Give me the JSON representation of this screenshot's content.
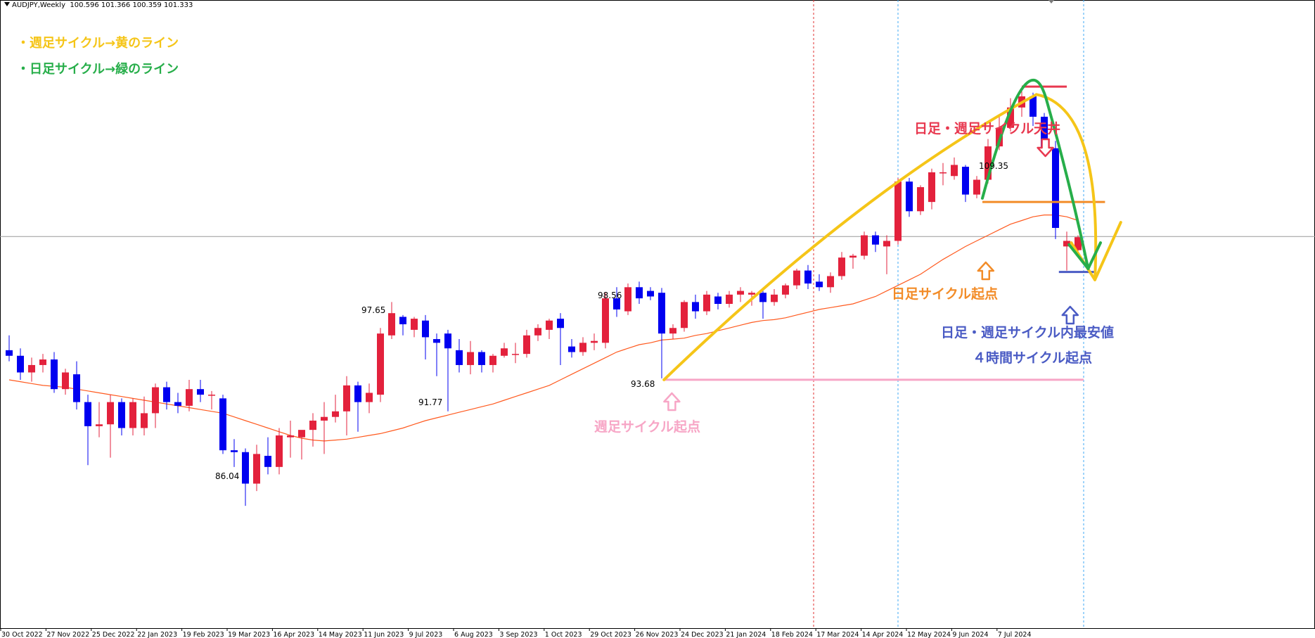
{
  "header": {
    "symbol": "AUDJPY,Weekly",
    "ohlc": "100.596 101.366 100.359 101.333"
  },
  "legend": [
    {
      "text": "・週足サイクル→黄のライン",
      "color": "#f5c518"
    },
    {
      "text": "・日足サイクル→緑のライン",
      "color": "#27ae4a"
    }
  ],
  "annotations": {
    "top": {
      "text": "日足・週足サイクル天井",
      "color": "#e8384f"
    },
    "daily_start": {
      "text": "日足サイクル起点",
      "color": "#f28c28"
    },
    "lowest": {
      "text": "日足・週足サイクル内最安値",
      "color": "#4a5bc4"
    },
    "h4_start": {
      "text": "４時間サイクル起点",
      "color": "#4a5bc4"
    },
    "weekly_start": {
      "text": "週足サイクル起点",
      "color": "#f7a6c6"
    }
  },
  "price_labels": [
    "86.04",
    "97.65",
    "91.77",
    "98.56",
    "93.68",
    "109.35"
  ],
  "colors": {
    "bull": "#e3213c",
    "bear": "#0000f0",
    "ma": "#ff5a1f",
    "yellow": "#f5c518",
    "green": "#27ae4a",
    "orange": "#f28c28",
    "pink": "#f7a6c6",
    "blue": "#4a5bc4",
    "red": "#e8384f"
  },
  "chart_data": {
    "type": "candlestick",
    "symbol": "AUDJPY",
    "timeframe": "Weekly",
    "ylim": [
      80.2,
      114.1
    ],
    "x_ticks": [
      "30 Oct 2022",
      "27 Nov 2022",
      "25 Dec 2022",
      "22 Jan 2023",
      "19 Feb 2023",
      "19 Mar 2023",
      "16 Apr 2023",
      "14 May 2023",
      "11 Jun 2023",
      "9 Jul 2023",
      "6 Aug 2023",
      "3 Sep 2023",
      "1 Oct 2023",
      "29 Oct 2023",
      "26 Nov 2023",
      "24 Dec 2023",
      "21 Jan 2024",
      "18 Feb 2024",
      "17 Mar 2024",
      "14 Apr 2024",
      "12 May 2024",
      "9 Jun 2024",
      "7 Jul 2024"
    ],
    "candles": [
      {
        "o": 95.2,
        "h": 96.0,
        "l": 94.6,
        "c": 94.9
      },
      {
        "o": 94.9,
        "h": 95.3,
        "l": 93.6,
        "c": 94.0
      },
      {
        "o": 94.0,
        "h": 94.8,
        "l": 93.5,
        "c": 94.4
      },
      {
        "o": 94.4,
        "h": 95.0,
        "l": 94.0,
        "c": 94.7
      },
      {
        "o": 94.7,
        "h": 95.1,
        "l": 92.9,
        "c": 93.1
      },
      {
        "o": 93.1,
        "h": 94.2,
        "l": 92.8,
        "c": 94.0
      },
      {
        "o": 93.9,
        "h": 94.6,
        "l": 92.0,
        "c": 92.4
      },
      {
        "o": 92.4,
        "h": 92.8,
        "l": 89.0,
        "c": 91.1
      },
      {
        "o": 91.1,
        "h": 92.4,
        "l": 90.5,
        "c": 91.2
      },
      {
        "o": 91.2,
        "h": 92.8,
        "l": 89.4,
        "c": 92.4
      },
      {
        "o": 92.4,
        "h": 92.6,
        "l": 90.6,
        "c": 91.0
      },
      {
        "o": 91.0,
        "h": 92.6,
        "l": 90.6,
        "c": 92.4
      },
      {
        "o": 91.0,
        "h": 92.7,
        "l": 90.6,
        "c": 91.8
      },
      {
        "o": 91.8,
        "h": 93.4,
        "l": 91.0,
        "c": 93.2
      },
      {
        "o": 93.2,
        "h": 93.5,
        "l": 92.0,
        "c": 92.4
      },
      {
        "o": 92.4,
        "h": 92.9,
        "l": 91.8,
        "c": 92.2
      },
      {
        "o": 92.2,
        "h": 93.6,
        "l": 91.9,
        "c": 93.1
      },
      {
        "o": 93.1,
        "h": 93.6,
        "l": 92.4,
        "c": 92.8
      },
      {
        "o": 92.8,
        "h": 93.0,
        "l": 92.0,
        "c": 92.8
      },
      {
        "o": 92.6,
        "h": 92.8,
        "l": 89.6,
        "c": 89.8
      },
      {
        "o": 89.8,
        "h": 90.4,
        "l": 88.9,
        "c": 89.7
      },
      {
        "o": 89.7,
        "h": 89.9,
        "l": 86.8,
        "c": 88.0
      },
      {
        "o": 88.0,
        "h": 90.1,
        "l": 87.6,
        "c": 89.6
      },
      {
        "o": 89.5,
        "h": 90.5,
        "l": 88.5,
        "c": 88.9
      },
      {
        "o": 88.9,
        "h": 91.0,
        "l": 88.5,
        "c": 90.6
      },
      {
        "o": 90.5,
        "h": 91.4,
        "l": 89.4,
        "c": 90.6
      },
      {
        "o": 90.5,
        "h": 90.8,
        "l": 89.3,
        "c": 90.9
      },
      {
        "o": 90.9,
        "h": 91.8,
        "l": 90.0,
        "c": 91.4
      },
      {
        "o": 91.4,
        "h": 92.4,
        "l": 89.6,
        "c": 91.6
      },
      {
        "o": 91.6,
        "h": 92.8,
        "l": 91.3,
        "c": 91.9
      },
      {
        "o": 91.9,
        "h": 93.8,
        "l": 90.6,
        "c": 93.3
      },
      {
        "o": 93.3,
        "h": 93.5,
        "l": 90.8,
        "c": 92.4
      },
      {
        "o": 92.4,
        "h": 93.4,
        "l": 91.8,
        "c": 92.9
      },
      {
        "o": 92.8,
        "h": 96.4,
        "l": 92.4,
        "c": 96.1
      },
      {
        "o": 96.0,
        "h": 97.8,
        "l": 95.8,
        "c": 97.2
      },
      {
        "o": 97.0,
        "h": 97.1,
        "l": 96.0,
        "c": 96.6
      },
      {
        "o": 96.3,
        "h": 97.0,
        "l": 95.9,
        "c": 96.9
      },
      {
        "o": 96.8,
        "h": 97.1,
        "l": 94.7,
        "c": 95.9
      },
      {
        "o": 95.8,
        "h": 96.1,
        "l": 93.8,
        "c": 95.6
      },
      {
        "o": 96.1,
        "h": 96.3,
        "l": 91.9,
        "c": 95.3
      },
      {
        "o": 95.2,
        "h": 95.8,
        "l": 94.0,
        "c": 94.4
      },
      {
        "o": 94.4,
        "h": 95.7,
        "l": 93.9,
        "c": 95.1
      },
      {
        "o": 95.1,
        "h": 95.2,
        "l": 94.0,
        "c": 94.4
      },
      {
        "o": 94.4,
        "h": 95.0,
        "l": 94.0,
        "c": 94.9
      },
      {
        "o": 94.9,
        "h": 95.6,
        "l": 94.8,
        "c": 95.3
      },
      {
        "o": 95.0,
        "h": 95.6,
        "l": 94.5,
        "c": 95.0
      },
      {
        "o": 95.0,
        "h": 96.3,
        "l": 94.8,
        "c": 96.0
      },
      {
        "o": 96.0,
        "h": 96.6,
        "l": 95.7,
        "c": 96.4
      },
      {
        "o": 96.3,
        "h": 96.9,
        "l": 95.8,
        "c": 96.8
      },
      {
        "o": 96.9,
        "h": 97.2,
        "l": 94.4,
        "c": 96.4
      },
      {
        "o": 95.4,
        "h": 95.8,
        "l": 94.8,
        "c": 95.1
      },
      {
        "o": 95.1,
        "h": 95.9,
        "l": 94.9,
        "c": 95.6
      },
      {
        "o": 95.6,
        "h": 96.1,
        "l": 95.2,
        "c": 95.7
      },
      {
        "o": 95.6,
        "h": 98.3,
        "l": 95.3,
        "c": 98.0
      },
      {
        "o": 98.0,
        "h": 98.6,
        "l": 97.0,
        "c": 97.4
      },
      {
        "o": 97.3,
        "h": 98.8,
        "l": 97.1,
        "c": 98.6
      },
      {
        "o": 98.6,
        "h": 98.9,
        "l": 97.7,
        "c": 98.0
      },
      {
        "o": 98.4,
        "h": 98.6,
        "l": 97.9,
        "c": 98.1
      },
      {
        "o": 98.3,
        "h": 98.56,
        "l": 93.68,
        "c": 96.1
      },
      {
        "o": 96.1,
        "h": 96.6,
        "l": 95.8,
        "c": 96.4
      },
      {
        "o": 96.4,
        "h": 97.9,
        "l": 96.2,
        "c": 97.8
      },
      {
        "o": 97.8,
        "h": 98.2,
        "l": 96.9,
        "c": 97.3
      },
      {
        "o": 97.3,
        "h": 98.4,
        "l": 97.1,
        "c": 98.2
      },
      {
        "o": 98.1,
        "h": 98.3,
        "l": 97.4,
        "c": 97.7
      },
      {
        "o": 97.7,
        "h": 98.4,
        "l": 97.5,
        "c": 98.2
      },
      {
        "o": 98.2,
        "h": 98.6,
        "l": 97.8,
        "c": 98.4
      },
      {
        "o": 98.2,
        "h": 98.4,
        "l": 97.6,
        "c": 98.3
      },
      {
        "o": 98.3,
        "h": 98.4,
        "l": 96.9,
        "c": 97.8
      },
      {
        "o": 97.8,
        "h": 98.5,
        "l": 97.6,
        "c": 98.2
      },
      {
        "o": 98.2,
        "h": 98.8,
        "l": 98.0,
        "c": 98.7
      },
      {
        "o": 98.7,
        "h": 99.6,
        "l": 98.5,
        "c": 99.5
      },
      {
        "o": 99.5,
        "h": 99.8,
        "l": 98.5,
        "c": 98.8
      },
      {
        "o": 98.9,
        "h": 99.3,
        "l": 98.4,
        "c": 98.6
      },
      {
        "o": 98.6,
        "h": 99.4,
        "l": 98.3,
        "c": 99.2
      },
      {
        "o": 99.2,
        "h": 100.5,
        "l": 99.0,
        "c": 100.2
      },
      {
        "o": 100.2,
        "h": 100.4,
        "l": 99.6,
        "c": 100.3
      },
      {
        "o": 100.3,
        "h": 101.6,
        "l": 100.1,
        "c": 101.4
      },
      {
        "o": 101.4,
        "h": 101.6,
        "l": 100.5,
        "c": 100.9
      },
      {
        "o": 100.8,
        "h": 101.4,
        "l": 99.3,
        "c": 101.1
      },
      {
        "o": 101.1,
        "h": 104.5,
        "l": 100.9,
        "c": 104.3
      },
      {
        "o": 104.3,
        "h": 104.5,
        "l": 102.4,
        "c": 102.7
      },
      {
        "o": 102.7,
        "h": 104.1,
        "l": 102.5,
        "c": 104.0
      },
      {
        "o": 103.2,
        "h": 105.0,
        "l": 102.8,
        "c": 104.8
      },
      {
        "o": 104.8,
        "h": 105.3,
        "l": 104.1,
        "c": 104.8
      },
      {
        "o": 104.6,
        "h": 105.6,
        "l": 104.4,
        "c": 105.2
      },
      {
        "o": 105.1,
        "h": 105.2,
        "l": 103.2,
        "c": 103.6
      },
      {
        "o": 103.6,
        "h": 104.6,
        "l": 103.4,
        "c": 104.4
      },
      {
        "o": 104.4,
        "h": 106.6,
        "l": 104.2,
        "c": 106.2
      },
      {
        "o": 106.2,
        "h": 107.8,
        "l": 106.0,
        "c": 107.2
      },
      {
        "o": 107.2,
        "h": 108.8,
        "l": 107.0,
        "c": 108.3
      },
      {
        "o": 108.3,
        "h": 109.35,
        "l": 107.8,
        "c": 108.9
      },
      {
        "o": 108.9,
        "h": 109.1,
        "l": 107.3,
        "c": 107.8
      },
      {
        "o": 107.8,
        "h": 108.0,
        "l": 105.8,
        "c": 106.1
      },
      {
        "o": 106.1,
        "h": 106.5,
        "l": 101.2,
        "c": 101.8
      },
      {
        "o": 100.8,
        "h": 101.6,
        "l": 99.5,
        "c": 101.1
      },
      {
        "o": 100.6,
        "h": 101.4,
        "l": 100.4,
        "c": 101.3
      }
    ],
    "moving_average": [
      93.6,
      93.5,
      93.4,
      93.3,
      93.25,
      93.2,
      93.1,
      93.0,
      92.9,
      92.8,
      92.7,
      92.6,
      92.5,
      92.4,
      92.3,
      92.2,
      92.1,
      92.0,
      91.9,
      91.8,
      91.6,
      91.4,
      91.2,
      91.0,
      90.8,
      90.6,
      90.45,
      90.35,
      90.3,
      90.35,
      90.4,
      90.5,
      90.6,
      90.7,
      90.85,
      91.0,
      91.2,
      91.4,
      91.55,
      91.7,
      91.85,
      92.0,
      92.15,
      92.3,
      92.5,
      92.7,
      92.9,
      93.1,
      93.3,
      93.6,
      93.9,
      94.2,
      94.5,
      94.8,
      95.1,
      95.3,
      95.5,
      95.6,
      95.75,
      95.8,
      95.85,
      96.0,
      96.1,
      96.25,
      96.4,
      96.55,
      96.7,
      96.8,
      96.85,
      96.95,
      97.1,
      97.25,
      97.4,
      97.5,
      97.6,
      97.7,
      97.9,
      98.1,
      98.4,
      98.7,
      99.0,
      99.3,
      99.7,
      100.1,
      100.45,
      100.8,
      101.1,
      101.4,
      101.7,
      102.0,
      102.2,
      102.4,
      102.5,
      102.5,
      102.4,
      102.2
    ]
  }
}
